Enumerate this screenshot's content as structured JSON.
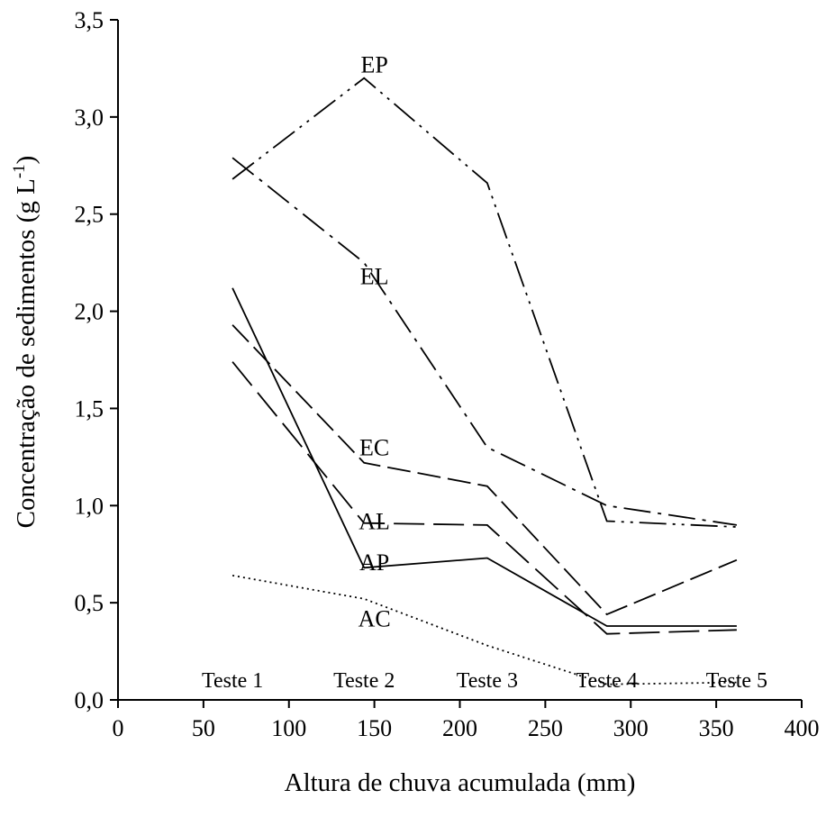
{
  "chart_data": {
    "type": "line",
    "title": "",
    "xlabel": "Altura de chuva acumulada (mm)",
    "ylabel": "Concentração de sedimentos (g L",
    "ylabel_unit_exponent": "-1",
    "ylabel_close": ")",
    "xlim": [
      0,
      400
    ],
    "ylim": [
      0,
      3.5
    ],
    "xticks": [
      0,
      50,
      100,
      150,
      200,
      250,
      300,
      350,
      400
    ],
    "yticks": [
      0.0,
      0.5,
      1.0,
      1.5,
      2.0,
      2.5,
      3.0,
      3.5
    ],
    "xtick_labels": [
      "0",
      "50",
      "100",
      "150",
      "200",
      "250",
      "300",
      "350",
      "400"
    ],
    "ytick_labels": [
      "0,0",
      "0,5",
      "1,0",
      "1,5",
      "2,0",
      "2,5",
      "3,0",
      "3,5"
    ],
    "grid": false,
    "legend": "none",
    "test_labels": [
      {
        "text": "Teste 1",
        "x": 67
      },
      {
        "text": "Teste 2",
        "x": 144
      },
      {
        "text": "Teste 3",
        "x": 216
      },
      {
        "text": "Teste 4",
        "x": 286
      },
      {
        "text": "Teste 5",
        "x": 362
      }
    ],
    "series": [
      {
        "name": "EP",
        "style": "dash-dot-dot",
        "x": [
          67,
          144,
          216,
          286,
          362
        ],
        "y": [
          2.68,
          3.2,
          2.66,
          0.92,
          0.89
        ],
        "label_at": [
          150,
          3.27
        ]
      },
      {
        "name": "EL",
        "style": "dash-dot",
        "x": [
          67,
          144,
          216,
          286,
          362
        ],
        "y": [
          2.79,
          2.25,
          1.3,
          1.0,
          0.9
        ],
        "label_at": [
          150,
          2.18
        ]
      },
      {
        "name": "EC",
        "style": "dash",
        "x": [
          67,
          144,
          216,
          286,
          362
        ],
        "y": [
          1.93,
          1.22,
          1.1,
          0.44,
          0.72
        ],
        "label_at": [
          150,
          1.3
        ]
      },
      {
        "name": "AL",
        "style": "long-dash",
        "x": [
          67,
          144,
          216,
          286,
          362
        ],
        "y": [
          1.74,
          0.91,
          0.9,
          0.34,
          0.36
        ],
        "label_at": [
          150,
          0.92
        ]
      },
      {
        "name": "AP",
        "style": "solid",
        "x": [
          67,
          144,
          216,
          286,
          362
        ],
        "y": [
          2.12,
          0.68,
          0.73,
          0.38,
          0.38
        ],
        "label_at": [
          150,
          0.71
        ]
      },
      {
        "name": "AC",
        "style": "dotted",
        "x": [
          67,
          144,
          216,
          286,
          362
        ],
        "y": [
          0.64,
          0.52,
          0.28,
          0.08,
          0.09
        ],
        "label_at": [
          150,
          0.42
        ]
      }
    ]
  }
}
